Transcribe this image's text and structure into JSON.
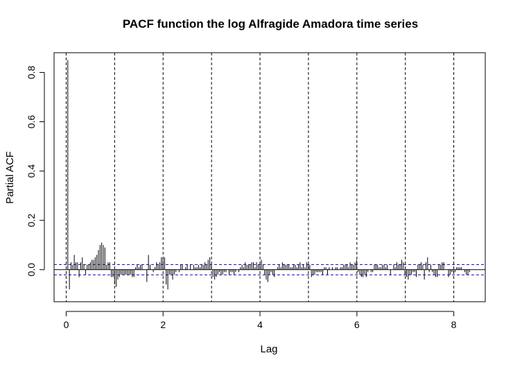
{
  "chart_data": {
    "type": "bar",
    "title": "PACF function the log Alfragide Amadora time series",
    "xlabel": "Lag",
    "ylabel": "Partial ACF",
    "xlim": [
      -0.25,
      8.65
    ],
    "ylim": [
      -0.13,
      0.88
    ],
    "x_ticks": [
      0,
      2,
      4,
      6,
      8
    ],
    "x_tick_labels": [
      "0",
      "2",
      "4",
      "6",
      "8"
    ],
    "y_ticks": [
      0.0,
      0.2,
      0.4,
      0.6,
      0.8
    ],
    "y_tick_labels": [
      "0.0",
      "0.2",
      "0.4",
      "0.6",
      "0.8"
    ],
    "confidence_bound": 0.021,
    "confidence_color": "#0000cc",
    "period_markers": [
      0,
      1,
      2,
      3,
      4,
      5,
      6,
      7,
      8
    ],
    "lag_step": 0.0333,
    "values": [
      0.85,
      -0.08,
      0.03,
      0.02,
      0.06,
      0.03,
      0.03,
      -0.03,
      0.03,
      0.05,
      0.02,
      -0.02,
      0.02,
      0.02,
      0.03,
      0.04,
      0.04,
      0.05,
      0.06,
      0.08,
      0.1,
      0.11,
      0.1,
      0.09,
      0.02,
      0.03,
      0.03,
      -0.03,
      -0.03,
      -0.06,
      -0.07,
      -0.04,
      -0.03,
      -0.02,
      -0.02,
      -0.02,
      -0.02,
      -0.02,
      -0.02,
      -0.02,
      -0.03,
      -0.03,
      0.01,
      0.02,
      0.01,
      0.02,
      0.02,
      0.0,
      0.0,
      -0.05,
      0.06,
      0.02,
      0.0,
      -0.01,
      0.01,
      0.03,
      0.02,
      0.03,
      0.05,
      0.05,
      0.05,
      -0.06,
      -0.08,
      -0.02,
      -0.02,
      -0.04,
      -0.02,
      -0.01,
      0.0,
      -0.01,
      0.02,
      0.02,
      0.0,
      0.01,
      0.02,
      0.0,
      0.02,
      0.0,
      0.02,
      0.01,
      0.01,
      0.02,
      0.01,
      0.02,
      0.02,
      0.03,
      0.02,
      0.04,
      0.05,
      0.02,
      -0.03,
      -0.04,
      -0.03,
      -0.02,
      -0.01,
      -0.02,
      -0.02,
      -0.01,
      -0.01,
      0.0,
      -0.02,
      -0.01,
      -0.01,
      -0.02,
      -0.01,
      0.0,
      -0.01,
      0.01,
      0.02,
      0.01,
      0.03,
      0.02,
      0.02,
      0.02,
      0.03,
      0.03,
      0.01,
      0.03,
      0.02,
      0.02,
      0.04,
      0.02,
      -0.02,
      -0.04,
      -0.05,
      -0.02,
      -0.01,
      -0.02,
      -0.03,
      0.0,
      0.01,
      0.02,
      0.01,
      0.03,
      0.02,
      0.02,
      0.02,
      0.02,
      0.01,
      0.01,
      0.02,
      0.02,
      0.01,
      0.02,
      0.03,
      0.01,
      0.02,
      0.01,
      0.03,
      0.02,
      0.02,
      -0.03,
      -0.02,
      -0.02,
      -0.01,
      -0.01,
      -0.01,
      -0.01,
      -0.02,
      0.01,
      0.01,
      -0.02,
      0.01,
      0.0,
      0.01,
      0.0,
      0.01,
      0.01,
      0.0,
      0.01,
      0.01,
      0.02,
      0.02,
      0.02,
      0.01,
      0.03,
      0.02,
      0.02,
      0.03,
      0.04,
      -0.01,
      -0.02,
      -0.03,
      -0.03,
      -0.02,
      -0.03,
      -0.01,
      0.0,
      -0.01,
      -0.01,
      0.02,
      0.02,
      0.02,
      0.01,
      0.01,
      0.02,
      0.02,
      0.01,
      0.02,
      0.0,
      -0.02,
      0.0,
      0.02,
      0.01,
      0.03,
      0.02,
      0.02,
      0.04,
      0.03,
      -0.02,
      -0.03,
      -0.04,
      -0.02,
      -0.02,
      -0.01,
      -0.01,
      -0.03,
      0.02,
      0.02,
      0.03,
      0.02,
      -0.04,
      0.03,
      0.05,
      -0.01,
      0.02,
      -0.01,
      -0.02,
      -0.03,
      -0.03,
      0.02,
      0.02,
      0.03,
      0.03,
      0.0,
      0.0,
      -0.03,
      -0.02,
      -0.01,
      -0.01,
      -0.01,
      0.01,
      0.01,
      0.01,
      0.01,
      0.0,
      -0.01,
      -0.02,
      -0.02,
      -0.01
    ]
  }
}
